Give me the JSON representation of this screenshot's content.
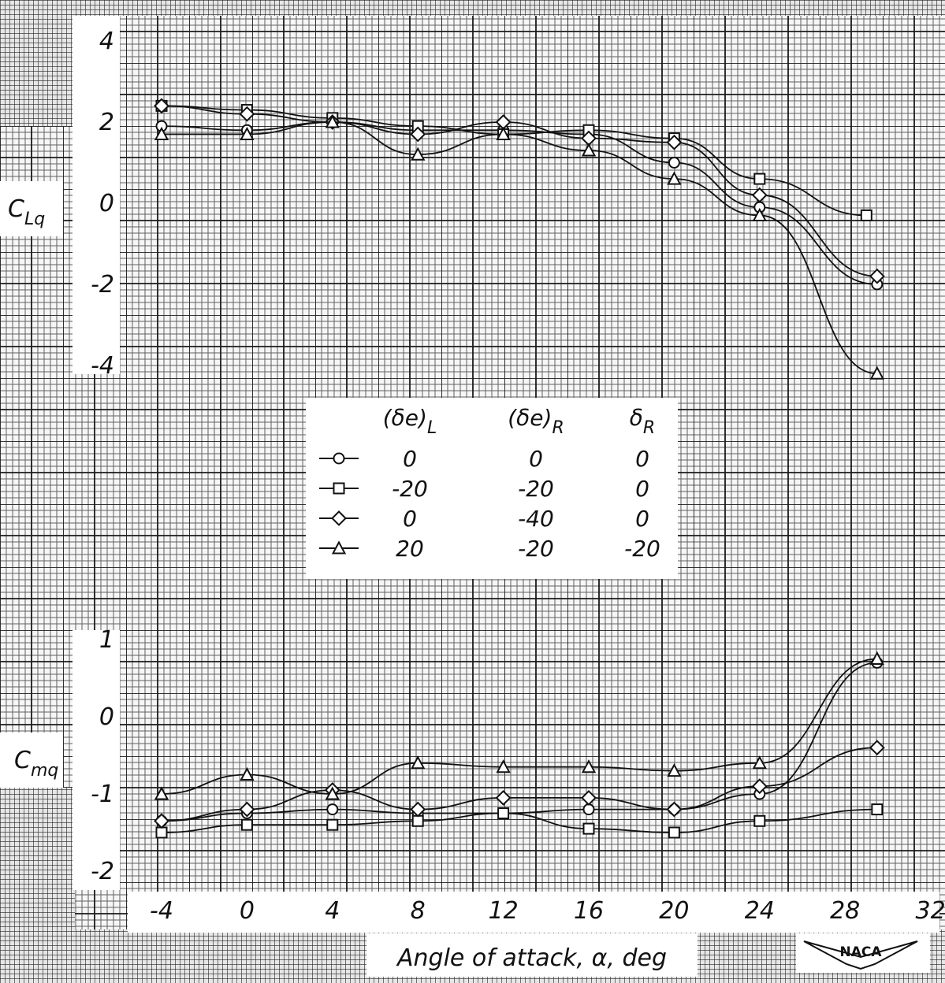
{
  "chart_data": [
    {
      "type": "line",
      "ylabel_main": "C",
      "ylabel_sub": "Lq",
      "yticks": [
        "4",
        "2",
        "0",
        "-2",
        "-4"
      ],
      "ylim": [
        -4,
        4
      ],
      "xlim": [
        -4,
        32
      ],
      "series": [
        {
          "marker": "circle",
          "x": [
            -4,
            0,
            4,
            8,
            12,
            16,
            20,
            24,
            29.5
          ],
          "y": [
            1.9,
            1.8,
            2.0,
            1.8,
            1.8,
            1.7,
            1.0,
            -0.1,
            -2.0
          ]
        },
        {
          "marker": "square",
          "x": [
            -4,
            0,
            4,
            8,
            12,
            16,
            20,
            24,
            29
          ],
          "y": [
            2.4,
            2.3,
            2.1,
            1.9,
            1.7,
            1.8,
            1.6,
            0.6,
            -0.3
          ]
        },
        {
          "marker": "diamond",
          "x": [
            -4,
            0,
            4,
            8,
            12,
            16,
            20,
            24,
            29.5
          ],
          "y": [
            2.4,
            2.2,
            2.0,
            1.7,
            2.0,
            1.6,
            1.5,
            0.2,
            -1.8
          ]
        },
        {
          "marker": "triangle",
          "x": [
            -4,
            0,
            4,
            8,
            12,
            16,
            20,
            24,
            29.5
          ],
          "y": [
            1.7,
            1.7,
            2.0,
            1.2,
            1.7,
            1.3,
            0.6,
            -0.3,
            -4.2
          ]
        }
      ]
    },
    {
      "type": "line",
      "ylabel_main": "C",
      "ylabel_sub": "mq",
      "yticks": [
        "1",
        "0",
        "-1",
        "-2"
      ],
      "ylim": [
        -2,
        1
      ],
      "xlim": [
        -4,
        32
      ],
      "xticks": [
        "-4",
        "0",
        "4",
        "8",
        "12",
        "16",
        "20",
        "24",
        "28",
        "32"
      ],
      "xlabel": "Angle of attack, α, deg",
      "series": [
        {
          "marker": "circle",
          "x": [
            -4,
            0,
            4,
            8,
            12,
            16,
            20,
            24,
            29.5
          ],
          "y": [
            -1.35,
            -1.25,
            -1.2,
            -1.25,
            -1.25,
            -1.2,
            -1.2,
            -1.0,
            0.7
          ]
        },
        {
          "marker": "square",
          "x": [
            -4,
            0,
            4,
            8,
            12,
            16,
            20,
            24,
            29.5
          ],
          "y": [
            -1.5,
            -1.4,
            -1.4,
            -1.35,
            -1.25,
            -1.45,
            -1.5,
            -1.35,
            -1.2
          ]
        },
        {
          "marker": "diamond",
          "x": [
            -4,
            0,
            4,
            8,
            12,
            16,
            20,
            24,
            29.5
          ],
          "y": [
            -1.35,
            -1.2,
            -0.95,
            -1.2,
            -1.05,
            -1.05,
            -1.2,
            -0.9,
            -0.4
          ]
        },
        {
          "marker": "triangle",
          "x": [
            -4,
            0,
            4,
            8,
            12,
            16,
            20,
            24,
            29.5
          ],
          "y": [
            -1.0,
            -0.75,
            -1.0,
            -0.6,
            -0.65,
            -0.65,
            -0.7,
            -0.6,
            0.75
          ]
        }
      ]
    }
  ],
  "legend": {
    "headers": [
      {
        "main": "(δe)",
        "sub": "L"
      },
      {
        "main": "(δe)",
        "sub": "R"
      },
      {
        "main": "δ",
        "sub": "R"
      }
    ],
    "rows": [
      {
        "marker": "circle",
        "values": [
          "0",
          "0",
          "0"
        ]
      },
      {
        "marker": "square",
        "values": [
          "-20",
          "-20",
          "0"
        ]
      },
      {
        "marker": "diamond",
        "values": [
          "0",
          "-40",
          "0"
        ]
      },
      {
        "marker": "triangle",
        "values": [
          "20",
          "-20",
          "-20"
        ]
      }
    ]
  },
  "logo_text": "NACA"
}
